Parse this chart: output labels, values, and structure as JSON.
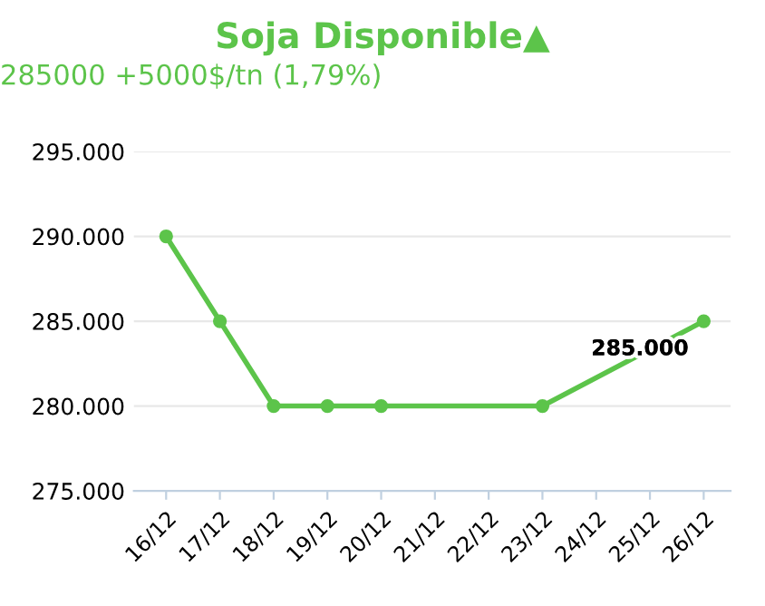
{
  "chart_data": {
    "type": "line",
    "title": "Soja Disponible▲",
    "subtitle": "285000 +5000$/tn (1,79%)",
    "categories": [
      "16/12",
      "17/12",
      "18/12",
      "19/12",
      "20/12",
      "21/12",
      "22/12",
      "23/12",
      "24/12",
      "25/12",
      "26/12"
    ],
    "series": [
      {
        "color": "#5cc44a",
        "values": [
          290000,
          285000,
          280000,
          280000,
          280000,
          null,
          null,
          280000,
          null,
          null,
          285000
        ],
        "value_labels": [
          null,
          null,
          null,
          null,
          null,
          null,
          null,
          null,
          null,
          null,
          "285.000"
        ]
      }
    ],
    "ylim": [
      275000,
      295000
    ],
    "yticks": [
      {
        "value": 275000,
        "label": "275.000"
      },
      {
        "value": 280000,
        "label": "280.000"
      },
      {
        "value": 285000,
        "label": "285.000"
      },
      {
        "value": 290000,
        "label": "290.000"
      },
      {
        "value": 295000,
        "label": "295.000"
      }
    ],
    "grid": "y",
    "marker": "circle",
    "line_style": "solid",
    "legend": false
  }
}
